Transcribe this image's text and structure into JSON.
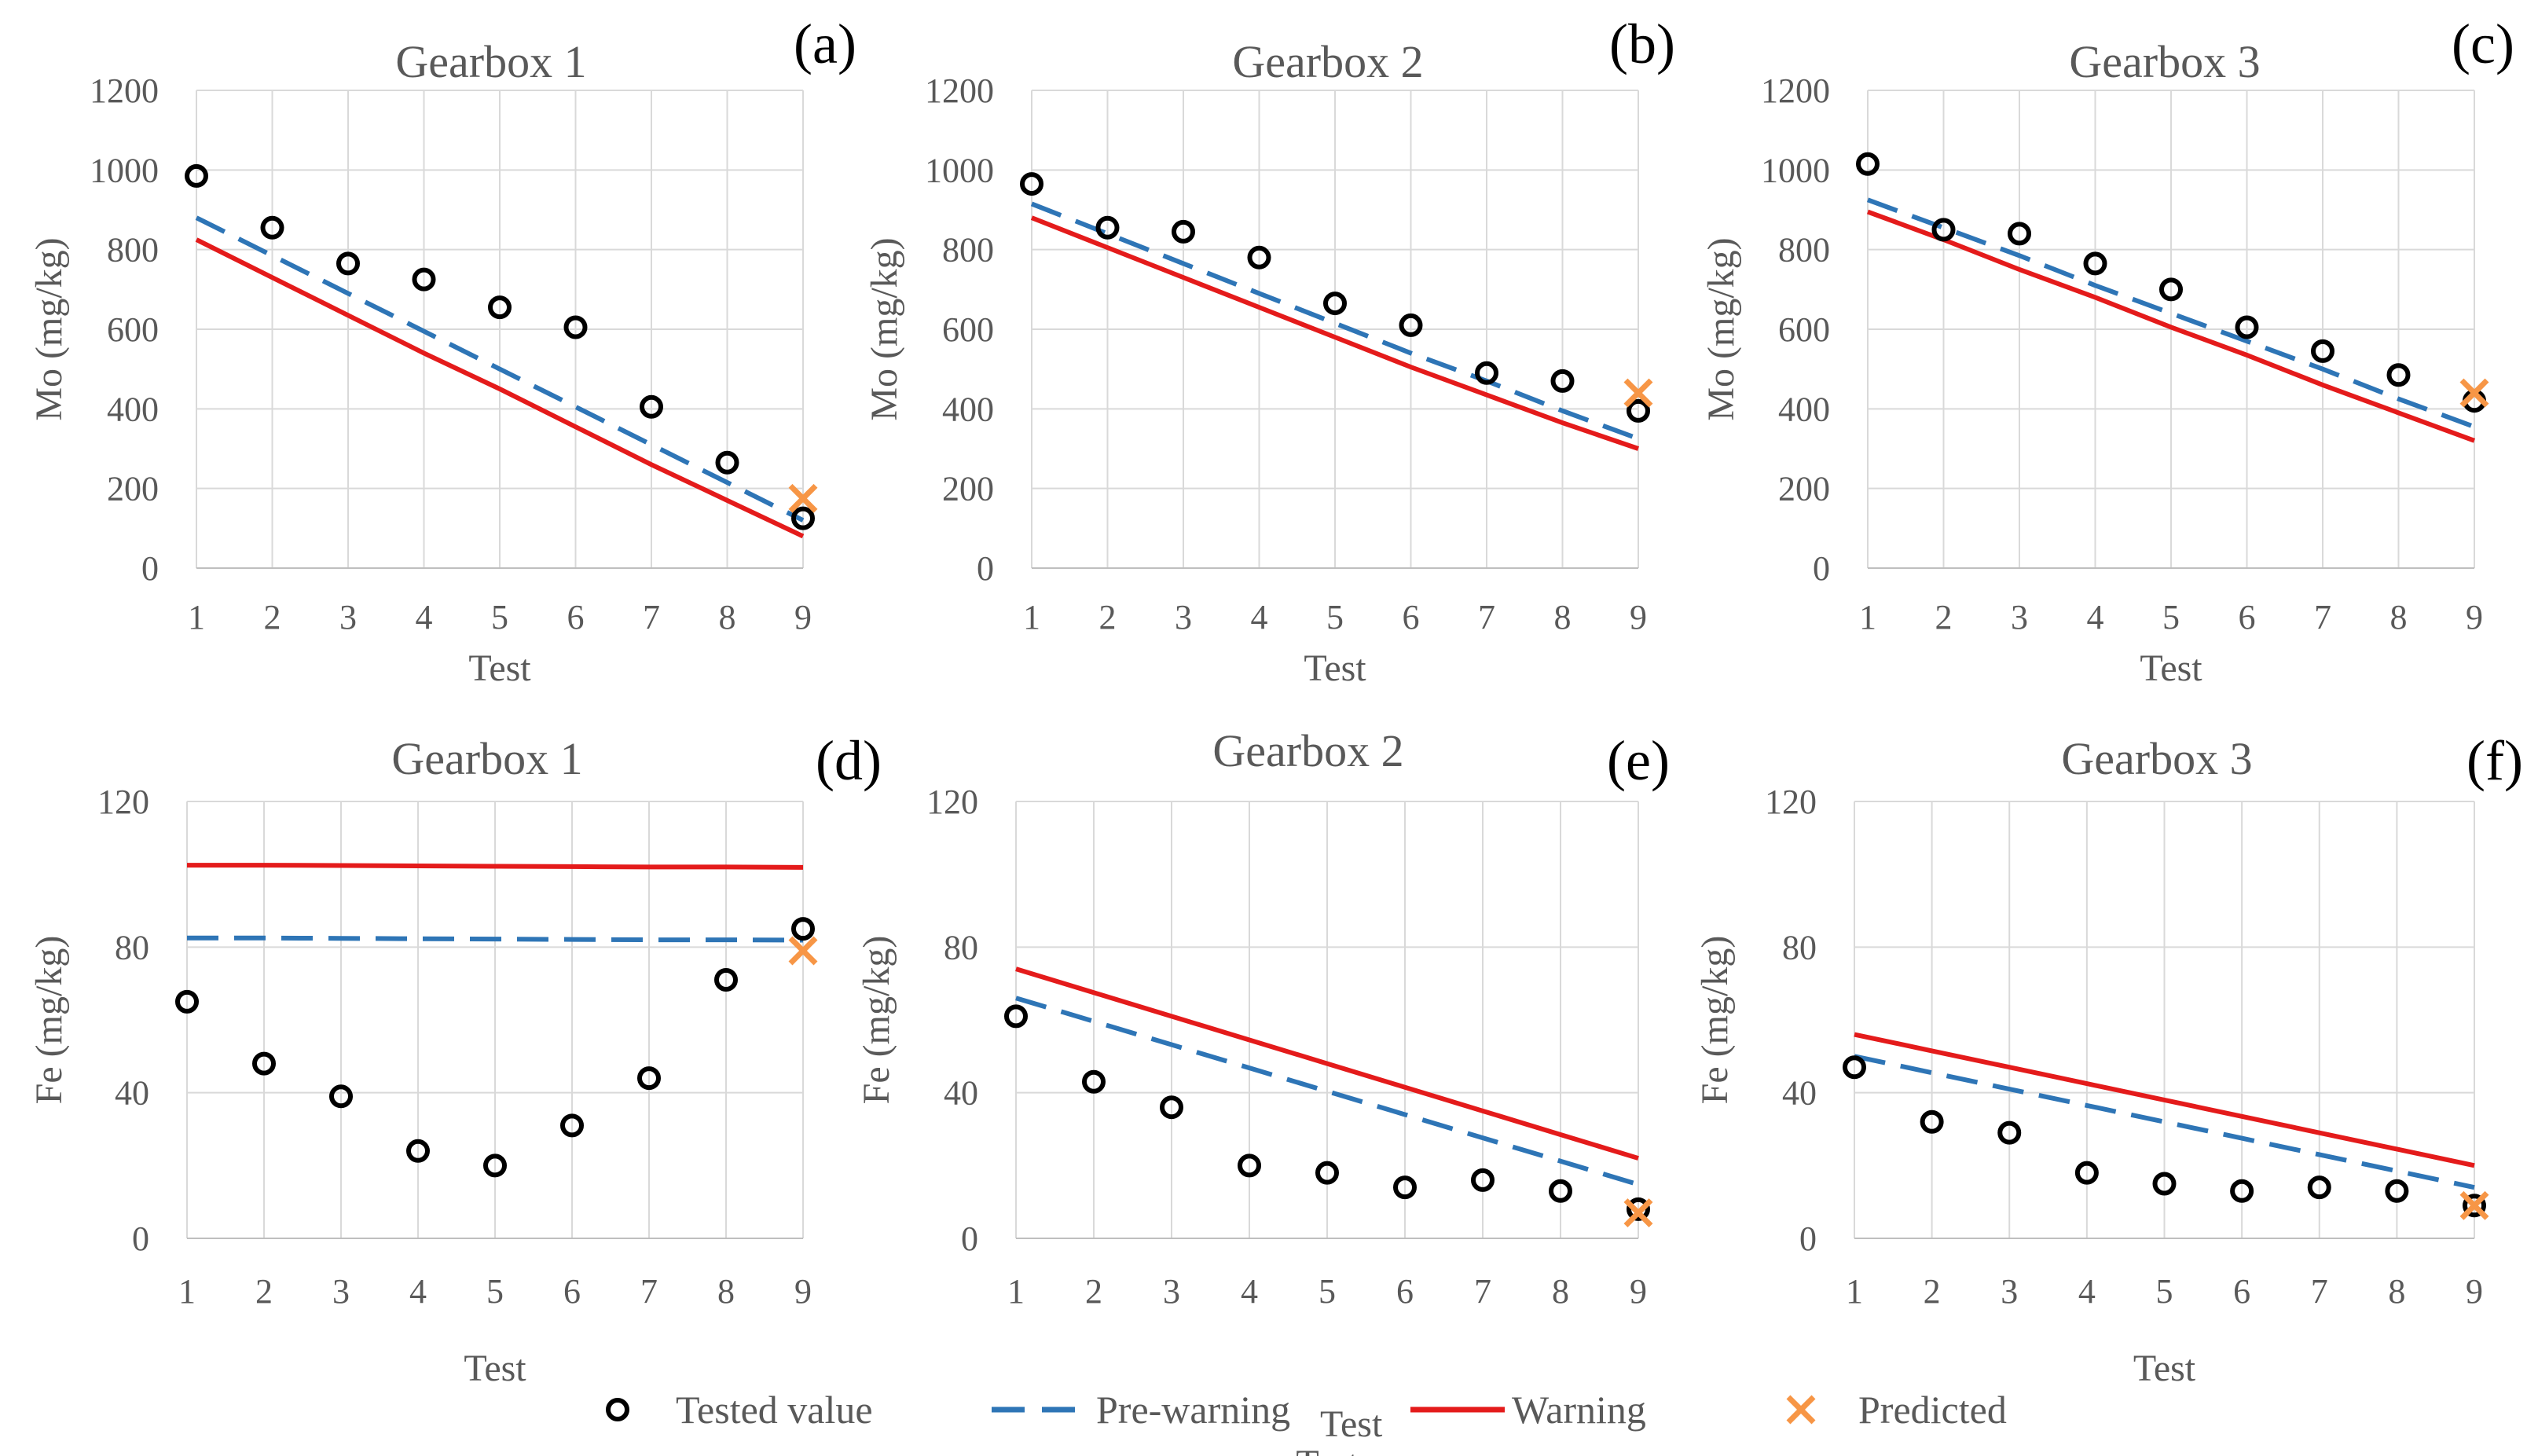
{
  "colors": {
    "tested": "#000000",
    "prewarning": "#2e75b6",
    "warning": "#e41b1b",
    "predicted": "#f79646",
    "text": "#595959"
  },
  "legend": {
    "tested": "Tested value",
    "prewarning": "Pre-warning",
    "warning": "Warning",
    "predicted": "Predicted",
    "stray_test": "Test"
  },
  "chart_data": [
    {
      "id": "a",
      "panel_label": "(a)",
      "type": "line",
      "title": "Gearbox 1",
      "xlabel": "Test",
      "ylabel": "Mo (mg/kg)",
      "x": [
        1,
        2,
        3,
        4,
        5,
        6,
        7,
        8,
        9
      ],
      "ylim": [
        0,
        1200
      ],
      "yticks": [
        0,
        200,
        400,
        600,
        800,
        1000,
        1200
      ],
      "series": [
        {
          "name": "Tested value",
          "kind": "points",
          "values": [
            985,
            855,
            765,
            725,
            655,
            605,
            405,
            265,
            125
          ]
        },
        {
          "name": "Pre-warning",
          "kind": "line",
          "values": [
            880,
            785,
            690,
            595,
            500,
            405,
            310,
            215,
            120
          ]
        },
        {
          "name": "Warning",
          "kind": "line",
          "values": [
            825,
            730,
            635,
            540,
            450,
            355,
            260,
            170,
            80
          ]
        },
        {
          "name": "Predicted",
          "kind": "cross",
          "x": 9,
          "value": 175
        }
      ]
    },
    {
      "id": "b",
      "panel_label": "(b)",
      "type": "line",
      "title": "Gearbox 2",
      "xlabel": "Test",
      "ylabel": "Mo (mg/kg)",
      "x": [
        1,
        2,
        3,
        4,
        5,
        6,
        7,
        8,
        9
      ],
      "ylim": [
        0,
        1200
      ],
      "yticks": [
        0,
        200,
        400,
        600,
        800,
        1000,
        1200
      ],
      "series": [
        {
          "name": "Tested value",
          "kind": "points",
          "values": [
            965,
            855,
            845,
            780,
            665,
            610,
            490,
            470,
            395
          ]
        },
        {
          "name": "Pre-warning",
          "kind": "line",
          "values": [
            915,
            840,
            765,
            690,
            615,
            540,
            470,
            395,
            325
          ]
        },
        {
          "name": "Warning",
          "kind": "line",
          "values": [
            880,
            805,
            730,
            655,
            580,
            505,
            435,
            365,
            300
          ]
        },
        {
          "name": "Predicted",
          "kind": "cross",
          "x": 9,
          "value": 440
        }
      ]
    },
    {
      "id": "c",
      "panel_label": "(c)",
      "type": "line",
      "title": "Gearbox 3",
      "xlabel": "Test",
      "ylabel": "Mo (mg/kg)",
      "x": [
        1,
        2,
        3,
        4,
        5,
        6,
        7,
        8,
        9
      ],
      "ylim": [
        0,
        1200
      ],
      "yticks": [
        0,
        200,
        400,
        600,
        800,
        1000,
        1200
      ],
      "series": [
        {
          "name": "Tested value",
          "kind": "points",
          "values": [
            1015,
            850,
            840,
            765,
            700,
            605,
            545,
            485,
            420
          ]
        },
        {
          "name": "Pre-warning",
          "kind": "line",
          "values": [
            925,
            855,
            785,
            710,
            640,
            570,
            500,
            425,
            355
          ]
        },
        {
          "name": "Warning",
          "kind": "line",
          "values": [
            895,
            825,
            750,
            680,
            605,
            535,
            460,
            390,
            320
          ]
        },
        {
          "name": "Predicted",
          "kind": "cross",
          "x": 9,
          "value": 440
        }
      ]
    },
    {
      "id": "d",
      "panel_label": "(d)",
      "type": "line",
      "title": "Gearbox 1",
      "xlabel": "Test",
      "ylabel": "Fe (mg/kg)",
      "x": [
        1,
        2,
        3,
        4,
        5,
        6,
        7,
        8,
        9
      ],
      "ylim": [
        0,
        120
      ],
      "yticks": [
        0,
        40,
        80,
        120
      ],
      "series": [
        {
          "name": "Tested value",
          "kind": "points",
          "values": [
            65,
            48,
            39,
            24,
            20,
            31,
            44,
            71,
            85
          ]
        },
        {
          "name": "Pre-warning",
          "kind": "line",
          "values": [
            82.5,
            82.5,
            82.4,
            82.3,
            82.2,
            82.1,
            82.0,
            82.0,
            81.9
          ]
        },
        {
          "name": "Warning",
          "kind": "line",
          "values": [
            102.5,
            102.5,
            102.4,
            102.3,
            102.2,
            102.1,
            102.0,
            102.0,
            101.9
          ]
        },
        {
          "name": "Predicted",
          "kind": "cross",
          "x": 9,
          "value": 79
        }
      ]
    },
    {
      "id": "e",
      "panel_label": "(e)",
      "type": "line",
      "title": "Gearbox 2",
      "xlabel": "Test",
      "ylabel": "Fe (mg/kg)",
      "x": [
        1,
        2,
        3,
        4,
        5,
        6,
        7,
        8,
        9
      ],
      "ylim": [
        0,
        120
      ],
      "yticks": [
        0,
        40,
        80,
        120
      ],
      "series": [
        {
          "name": "Tested value",
          "kind": "points",
          "values": [
            61,
            43,
            36,
            20,
            18,
            14,
            16,
            13,
            8
          ]
        },
        {
          "name": "Pre-warning",
          "kind": "line",
          "values": [
            66,
            59.6,
            53.2,
            46.8,
            40.4,
            34,
            27.6,
            21.2,
            14.8
          ]
        },
        {
          "name": "Warning",
          "kind": "line",
          "values": [
            74,
            67.5,
            61,
            54.5,
            48,
            41.5,
            35,
            28.5,
            22
          ]
        },
        {
          "name": "Predicted",
          "kind": "cross",
          "x": 9,
          "value": 7
        }
      ]
    },
    {
      "id": "f",
      "panel_label": "(f)",
      "type": "line",
      "title": "Gearbox 3",
      "xlabel": "Test",
      "ylabel": "Fe (mg/kg)",
      "x": [
        1,
        2,
        3,
        4,
        5,
        6,
        7,
        8,
        9
      ],
      "ylim": [
        0,
        120
      ],
      "yticks": [
        0,
        40,
        80,
        120
      ],
      "series": [
        {
          "name": "Tested value",
          "kind": "points",
          "values": [
            47,
            32,
            29,
            18,
            15,
            13,
            14,
            13,
            9
          ]
        },
        {
          "name": "Pre-warning",
          "kind": "line",
          "values": [
            50,
            45.5,
            41,
            36.5,
            32,
            27.5,
            23,
            18.5,
            14
          ]
        },
        {
          "name": "Warning",
          "kind": "line",
          "values": [
            56,
            51.5,
            47,
            42.5,
            38,
            33.5,
            29,
            24.5,
            20
          ]
        },
        {
          "name": "Predicted",
          "kind": "cross",
          "x": 9,
          "value": 9
        }
      ]
    }
  ]
}
